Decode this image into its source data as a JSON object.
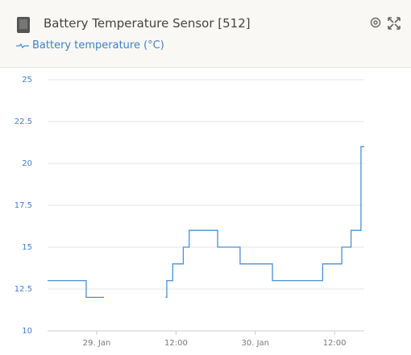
{
  "header": {
    "title": "Battery Temperature Sensor [512]"
  },
  "chart_data": {
    "type": "line",
    "step": true,
    "grid": true,
    "xlim": [
      -7.45,
      40.5
    ],
    "ylim": [
      10,
      25
    ],
    "xticks": [
      {
        "value": 0,
        "label": "29. Jan"
      },
      {
        "value": 12,
        "label": "12:00"
      },
      {
        "value": 24,
        "label": "30. Jan"
      },
      {
        "value": 36,
        "label": "12:00"
      }
    ],
    "yticks": [
      10,
      {
        "value": 12.5,
        "label": "12.5"
      },
      15,
      {
        "value": 17.5,
        "label": "17.5"
      },
      20,
      {
        "value": 22.5,
        "label": "22.5"
      },
      25
    ],
    "series": [
      {
        "name": "Battery temperature (°C)",
        "color": "#4a8fd6",
        "x": [
          -7.45,
          -1.6,
          1.1,
          5,
          10.4,
          10.6,
          11.5,
          13.1,
          14.0,
          18.3,
          21.7,
          26.6,
          34.2,
          37.1,
          38.5,
          40.0,
          40.5
        ],
        "values": [
          13,
          12,
          12,
          null,
          12,
          13,
          14,
          15,
          16,
          15,
          14,
          13,
          14,
          15,
          16,
          21,
          21
        ]
      }
    ]
  }
}
